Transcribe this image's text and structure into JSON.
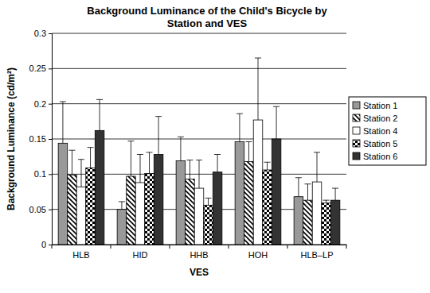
{
  "chart_data": {
    "type": "bar",
    "title": "Background Luminance of the Child's Bicycle by Station and VES",
    "x_label": "VES",
    "y_label": "Background Luminance (cd/m²)",
    "categories": [
      "HLB",
      "HID",
      "HHB",
      "HOH",
      "HLB–LP"
    ],
    "series": [
      {
        "name": "Station 1",
        "color": "#999999",
        "values": [
          0.144,
          0.05,
          0.119,
          0.146,
          0.068
        ],
        "errors": [
          0.059,
          0.011,
          0.034,
          0.04,
          0.027
        ]
      },
      {
        "name": "Station 2",
        "color": "#ffffff",
        "values": [
          0.099,
          0.097,
          0.093,
          0.118,
          0.063
        ],
        "errors": [
          0.035,
          0.05,
          0.027,
          0.028,
          0.023
        ]
      },
      {
        "name": "Station 4",
        "color": "#ffffff",
        "values": [
          0.082,
          0.088,
          0.08,
          0.177,
          0.089
        ],
        "errors": [
          0.039,
          0.04,
          0.04,
          0.088,
          0.042
        ]
      },
      {
        "name": "Station 5",
        "color": "#ffffff",
        "values": [
          0.109,
          0.101,
          0.056,
          0.106,
          0.059
        ],
        "errors": [
          0.029,
          0.03,
          0.01,
          0.011,
          0.004
        ]
      },
      {
        "name": "Station 6",
        "color": "#333333",
        "values": [
          0.162,
          0.128,
          0.103,
          0.15,
          0.063
        ],
        "errors": [
          0.044,
          0.054,
          0.025,
          0.046,
          0.017
        ]
      }
    ],
    "ylim": [
      0,
      0.3
    ],
    "yticks": [
      0,
      0.05,
      0.1,
      0.15,
      0.2,
      0.25,
      0.3
    ],
    "grid": true,
    "legend": "right"
  }
}
